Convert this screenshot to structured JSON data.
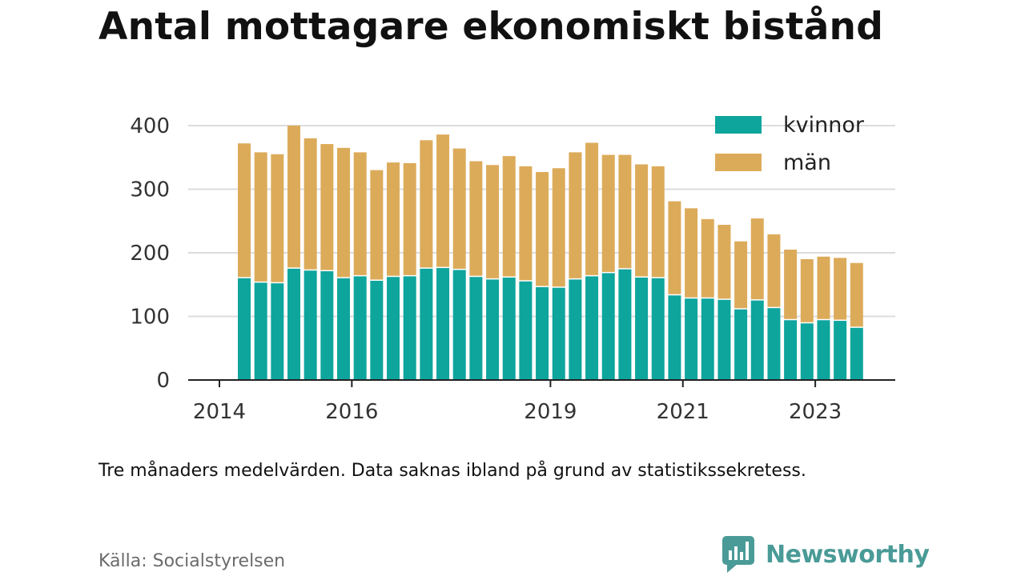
{
  "title": "Antal mottagare ekonomiskt bistånd",
  "caption": "Tre månaders medelvärden. Data saknas ibland på grund av statistikssekretess.",
  "source": "Källa: Socialstyrelsen",
  "brand": {
    "name": "Newsworthy",
    "color": "#4a9b97"
  },
  "chart_data": {
    "type": "bar",
    "stacked": true,
    "y_ticks": [
      0,
      100,
      200,
      300,
      400
    ],
    "ylim": [
      0,
      420
    ],
    "x_ticks": [
      "2014",
      "2016",
      "2019",
      "2021",
      "2023"
    ],
    "x_tick_bar_index": [
      -1.5,
      6.5,
      18.5,
      26.5,
      34.5
    ],
    "grid": true,
    "legend_position": "top-right",
    "series": [
      {
        "name": "kvinnor",
        "color": "#0ea59d",
        "values": [
          160,
          153,
          152,
          175,
          172,
          171,
          160,
          163,
          156,
          162,
          163,
          175,
          176,
          173,
          162,
          158,
          161,
          155,
          146,
          145,
          158,
          163,
          168,
          174,
          161,
          160,
          133,
          128,
          128,
          126,
          111,
          125,
          113,
          94,
          89,
          94,
          93,
          82
        ]
      },
      {
        "name": "män",
        "color": "#dcab5a",
        "values": [
          212,
          205,
          203,
          225,
          208,
          200,
          205,
          195,
          174,
          180,
          178,
          202,
          210,
          191,
          182,
          180,
          191,
          181,
          181,
          188,
          200,
          210,
          186,
          180,
          178,
          176,
          148,
          142,
          125,
          118,
          107,
          129,
          116,
          111,
          101,
          100,
          99,
          102
        ]
      }
    ]
  }
}
